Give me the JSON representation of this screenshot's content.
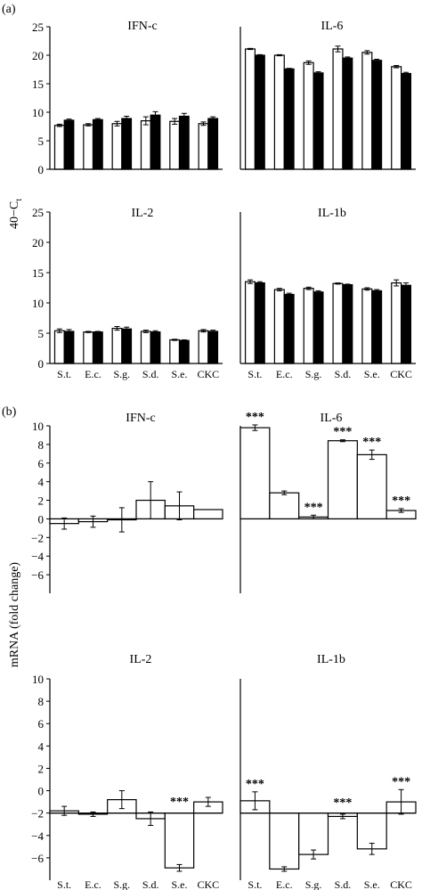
{
  "panel_labels": {
    "a": "(a)",
    "b": "(b)"
  },
  "ylabels": {
    "a": "40−C",
    "a_sub": "t",
    "b": "mRNA (fold change)"
  },
  "significance_mark": "***",
  "colors": {
    "open_bar": "#ffffff",
    "filled_bar": "#000000",
    "axis": "#000000"
  },
  "chart_data": [
    {
      "id": "a-ifn",
      "title": "IFN-c",
      "type": "bar",
      "categories": [
        "S.t.",
        "E.c.",
        "S.g.",
        "S.d.",
        "S.e.",
        "CKC"
      ],
      "ylim": [
        0,
        25
      ],
      "yticks": [
        "0",
        "5",
        "10",
        "15",
        "20",
        "25"
      ],
      "series": [
        {
          "style": "open",
          "values": [
            7.7,
            7.8,
            8.0,
            8.5,
            8.4,
            8.0
          ],
          "errors": [
            0.2,
            0.2,
            0.4,
            0.7,
            0.5,
            0.3
          ]
        },
        {
          "style": "filled",
          "values": [
            8.6,
            8.7,
            8.9,
            9.5,
            9.3,
            8.9
          ],
          "errors": [
            0.2,
            0.2,
            0.4,
            0.6,
            0.5,
            0.3
          ]
        }
      ]
    },
    {
      "id": "a-il6",
      "title": "IL-6",
      "type": "bar",
      "categories": [
        "S.t.",
        "E.c.",
        "S.g.",
        "S.d.",
        "S.e.",
        "CKC"
      ],
      "ylim": [
        0,
        25
      ],
      "yticks": [],
      "series": [
        {
          "style": "open",
          "values": [
            21.1,
            20.0,
            18.7,
            21.1,
            20.5,
            18.0
          ],
          "errors": [
            0.1,
            0.1,
            0.3,
            0.5,
            0.3,
            0.2
          ]
        },
        {
          "style": "filled",
          "values": [
            20.0,
            17.6,
            16.9,
            19.5,
            19.1,
            16.8
          ],
          "errors": [
            0.1,
            0.1,
            0.2,
            0.2,
            0.2,
            0.2
          ]
        }
      ]
    },
    {
      "id": "a-il2",
      "title": "IL-2",
      "type": "bar",
      "categories": [
        "S.t.",
        "E.c.",
        "S.g.",
        "S.d.",
        "S.e.",
        "CKC"
      ],
      "ylim": [
        0,
        25
      ],
      "yticks": [
        "0",
        "5",
        "10",
        "15",
        "20",
        "25"
      ],
      "series": [
        {
          "style": "open",
          "values": [
            5.4,
            5.2,
            5.8,
            5.3,
            3.9,
            5.4
          ],
          "errors": [
            0.3,
            0.1,
            0.3,
            0.2,
            0.1,
            0.2
          ]
        },
        {
          "style": "filled",
          "values": [
            5.3,
            5.2,
            5.7,
            5.2,
            3.8,
            5.3
          ],
          "errors": [
            0.3,
            0.1,
            0.3,
            0.2,
            0.1,
            0.2
          ]
        }
      ]
    },
    {
      "id": "a-il1b",
      "title": "IL-1b",
      "type": "bar",
      "categories": [
        "S.t.",
        "E.c.",
        "S.g.",
        "S.d.",
        "S.e.",
        "CKC"
      ],
      "show_xticks": true,
      "ylim": [
        0,
        25
      ],
      "yticks": [],
      "series": [
        {
          "style": "open",
          "values": [
            13.5,
            12.2,
            12.4,
            13.2,
            12.3,
            13.3
          ],
          "errors": [
            0.3,
            0.2,
            0.2,
            0.1,
            0.2,
            0.5
          ]
        },
        {
          "style": "filled",
          "values": [
            13.3,
            11.4,
            11.8,
            13.0,
            12.0,
            12.9
          ],
          "errors": [
            0.2,
            0.2,
            0.2,
            0.1,
            0.2,
            0.4
          ]
        }
      ]
    },
    {
      "id": "b-ifn",
      "title": "IFN-c",
      "type": "bar",
      "categories": [
        "S.t.",
        "E.c.",
        "S.g.",
        "S.d.",
        "S.e.",
        "CKC"
      ],
      "ylim": [
        -8,
        10
      ],
      "baseline": 0,
      "yticks": [
        "−6",
        "−4",
        "−2",
        "0",
        "2",
        "4",
        "6",
        "8",
        "10"
      ],
      "series": [
        {
          "style": "open",
          "values": [
            -0.5,
            -0.3,
            -0.1,
            2.0,
            1.4,
            1.0
          ],
          "errors": [
            0.6,
            0.6,
            1.3,
            2.0,
            1.5,
            0.0
          ],
          "sig": [
            false,
            false,
            false,
            false,
            false,
            false
          ]
        }
      ]
    },
    {
      "id": "b-il6",
      "title": "IL-6",
      "type": "bar",
      "categories": [
        "S.t.",
        "E.c.",
        "S.g.",
        "S.d.",
        "S.e.",
        "CKC"
      ],
      "ylim": [
        -8,
        10
      ],
      "baseline": 0,
      "yticks": [],
      "series": [
        {
          "style": "open",
          "values": [
            9.8,
            2.8,
            0.2,
            8.4,
            6.9,
            0.9
          ],
          "errors": [
            0.3,
            0.2,
            0.2,
            0.1,
            0.5,
            0.2
          ],
          "sig": [
            true,
            false,
            true,
            true,
            true,
            true
          ]
        }
      ]
    },
    {
      "id": "b-il2",
      "title": "IL-2",
      "type": "bar",
      "categories": [
        "S.t.",
        "E.c.",
        "S.g.",
        "S.d.",
        "S.e.",
        "CKC"
      ],
      "show_xticks": true,
      "ylim": [
        -8,
        10
      ],
      "baseline": -2,
      "yticks": [
        "−6",
        "−4",
        "−2",
        "0",
        "2",
        "4",
        "6",
        "8",
        "10"
      ],
      "series": [
        {
          "style": "open",
          "values": [
            -1.8,
            -2.1,
            -0.8,
            -2.5,
            -6.9,
            -1.0
          ],
          "errors": [
            0.4,
            0.2,
            0.8,
            0.6,
            0.3,
            0.4
          ],
          "sig": [
            false,
            false,
            false,
            false,
            true,
            false
          ]
        }
      ]
    },
    {
      "id": "b-il1b",
      "title": "IL-1b",
      "type": "bar",
      "categories": [
        "S.t.",
        "E.c.",
        "S.g.",
        "S.d.",
        "S.e.",
        "CKC"
      ],
      "show_xticks": true,
      "ylim": [
        -8,
        10
      ],
      "baseline": -2,
      "yticks": [],
      "series": [
        {
          "style": "open",
          "values": [
            -0.9,
            -7.0,
            -5.7,
            -2.3,
            -5.2,
            -1.0
          ],
          "errors": [
            0.8,
            0.2,
            0.4,
            0.2,
            0.5,
            1.1
          ],
          "sig": [
            true,
            false,
            false,
            true,
            false,
            true
          ]
        }
      ]
    }
  ]
}
